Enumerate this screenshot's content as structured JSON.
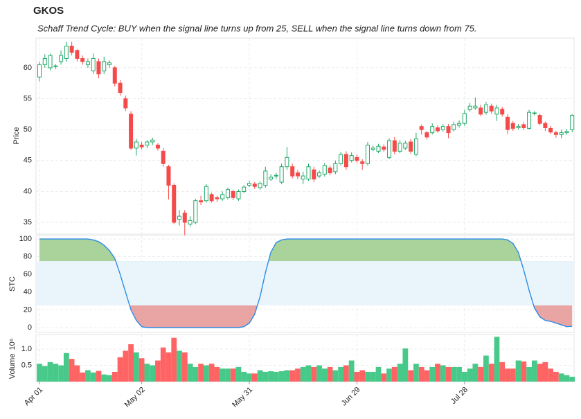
{
  "chart_data": [
    {
      "type": "candlestick",
      "title": "GKOS",
      "subtitle": "Schaff Trend Cycle: BUY when the signal line turns up from 25, SELL when the signal line turns down from 75.",
      "y_label": "Price",
      "categories": [
        "Apr 01",
        null,
        null,
        null,
        null,
        null,
        null,
        null,
        null,
        null,
        null,
        null,
        null,
        null,
        null,
        null,
        null,
        null,
        null,
        "May 02",
        null,
        null,
        null,
        null,
        null,
        null,
        null,
        null,
        null,
        null,
        null,
        null,
        null,
        null,
        null,
        null,
        null,
        null,
        null,
        "May 31",
        null,
        null,
        null,
        null,
        null,
        null,
        null,
        null,
        null,
        null,
        null,
        null,
        null,
        null,
        null,
        null,
        null,
        null,
        null,
        "Jun 29",
        null,
        null,
        null,
        null,
        null,
        null,
        null,
        null,
        null,
        null,
        null,
        null,
        null,
        null,
        null,
        null,
        null,
        null,
        null,
        "Jul 28",
        null,
        null,
        null,
        null,
        null,
        null,
        null,
        null,
        null,
        null,
        null,
        null,
        null,
        null,
        null,
        null,
        null,
        null,
        null,
        null
      ],
      "open": [
        58.5,
        60.5,
        60,
        60.2,
        61,
        61.5,
        63.5,
        62.8,
        61.5,
        60.5,
        59.5,
        61,
        59.5,
        60.5,
        60,
        57.5,
        55,
        52.5,
        47,
        47.5,
        47.5,
        48,
        47.5,
        46.5,
        44,
        41,
        35.5,
        36.5,
        34.7,
        35,
        38.5,
        38.5,
        39.5,
        39,
        38.8,
        39,
        40,
        38.8,
        40,
        41,
        41.2,
        40.6,
        41,
        42,
        42.5,
        41.5,
        44,
        44,
        43,
        42,
        42,
        43.5,
        42.5,
        42.8,
        43.8,
        43.2,
        44.5,
        46,
        45,
        45.5,
        44.8,
        44.5,
        46.8,
        46.5,
        47.2,
        45.5,
        48.2,
        46.5,
        47,
        48,
        46,
        50.5,
        49.5,
        49.5,
        50.3,
        50,
        50.5,
        50,
        50.7,
        51,
        53.2,
        53.5,
        53.5,
        52.8,
        53.8,
        52.5,
        53.3,
        52,
        51,
        50.3,
        50.8,
        50.2,
        52.6,
        52.3,
        51,
        50.2,
        49.5,
        49.2,
        49.5,
        50
      ],
      "high": [
        61,
        62.2,
        62.3,
        60.6,
        62.8,
        64.2,
        64.2,
        63,
        62,
        61.5,
        62.3,
        61.5,
        61.8,
        61.2,
        60.3,
        58,
        55.5,
        53,
        48.5,
        48,
        48.3,
        48.7,
        47.8,
        47,
        44.3,
        41.3,
        37,
        37,
        36,
        38.8,
        39.3,
        41.2,
        39.8,
        39.3,
        40,
        40.6,
        40.3,
        40.3,
        41,
        41.7,
        41.5,
        41.6,
        44,
        42.8,
        43,
        44.5,
        47.2,
        44.5,
        43.5,
        43.2,
        44.5,
        44,
        43.4,
        44.6,
        44.2,
        45,
        46.4,
        46.5,
        46.3,
        46,
        45.2,
        48,
        47.4,
        47.7,
        47.6,
        48.6,
        48.8,
        48.3,
        48.2,
        48.5,
        49.5,
        50.8,
        49.8,
        51,
        50.7,
        50.9,
        50.9,
        51.3,
        51.5,
        53.2,
        54.3,
        55.2,
        54,
        54.5,
        54.2,
        54,
        53.7,
        52.5,
        51.4,
        50.9,
        51.2,
        53.2,
        53,
        52.6,
        51.3,
        50.6,
        49.8,
        50,
        50.1,
        52.5
      ],
      "low": [
        57.8,
        60,
        59.6,
        59.8,
        60.5,
        61,
        62,
        61,
        60.5,
        60,
        59,
        58.3,
        59,
        60,
        57,
        55.5,
        53,
        46.7,
        45.8,
        46.8,
        47,
        47.5,
        46.6,
        44,
        38.7,
        34.7,
        34.5,
        32.8,
        34.3,
        34.7,
        37.8,
        38.2,
        38.2,
        38.3,
        38.5,
        38.7,
        38.6,
        38.5,
        39.7,
        40.7,
        40.4,
        40.3,
        40.6,
        41.7,
        42,
        41.2,
        43.5,
        42.1,
        42,
        41.2,
        41.7,
        41.5,
        42.2,
        42.4,
        42.6,
        42.8,
        44.2,
        43.5,
        44.7,
        44.6,
        43.5,
        44.2,
        46.5,
        46.2,
        46.4,
        45.2,
        46,
        46.2,
        46.7,
        46.1,
        45.7,
        49.2,
        48.4,
        49.2,
        49.5,
        49.7,
        48.6,
        49.7,
        50.3,
        50.6,
        52.9,
        53.2,
        52.2,
        52.4,
        52.6,
        51.4,
        52.1,
        49.3,
        49.8,
        50,
        49.9,
        50,
        52.3,
        50.7,
        49.8,
        49.3,
        48.7,
        48.6,
        49.2,
        49.6
      ],
      "close": [
        60.5,
        61.5,
        62,
        60.3,
        62,
        63.5,
        62.5,
        61.5,
        61,
        61,
        61.5,
        59,
        61,
        60.8,
        57.5,
        56,
        53.5,
        47,
        48,
        47.2,
        48,
        48.3,
        47,
        44.5,
        41,
        35,
        36,
        35,
        35.3,
        38.5,
        38.3,
        40.8,
        38.5,
        38.8,
        39.5,
        40.3,
        39,
        40,
        40.7,
        41.3,
        40.8,
        41.3,
        43.3,
        42.3,
        42.6,
        44,
        45.5,
        42.5,
        42.5,
        42.5,
        44,
        42,
        43,
        44.2,
        43,
        44.5,
        46,
        44,
        45.8,
        45,
        44.5,
        47.5,
        47,
        47.3,
        46.8,
        48.2,
        46.5,
        47.8,
        47.8,
        46.5,
        48.5,
        50,
        48.8,
        50.5,
        49.8,
        50.5,
        49.5,
        50.8,
        51,
        52.6,
        53.8,
        53.8,
        52.5,
        54,
        53,
        53.5,
        52.5,
        50,
        50.2,
        50.5,
        50.3,
        52.8,
        52.7,
        51,
        50.3,
        49.6,
        49.2,
        49.5,
        49.7,
        52.3
      ],
      "ylim": [
        33.1,
        64.8
      ],
      "yticks": [
        35,
        40,
        45,
        50,
        55,
        60
      ],
      "up_color": "#1fa866",
      "down_color": "#f64a4a",
      "grid": true
    },
    {
      "type": "line",
      "y_label": "STC",
      "values": [
        100,
        100,
        100,
        100,
        100,
        100,
        100,
        100,
        100,
        100,
        99,
        97,
        93,
        87,
        78,
        60,
        40,
        20,
        8,
        1,
        0,
        0,
        0,
        0,
        0,
        0,
        0,
        0,
        0,
        0,
        0,
        0,
        0,
        0,
        0,
        0,
        0,
        0,
        1,
        5,
        15,
        35,
        62,
        85,
        96,
        99,
        100,
        100,
        100,
        100,
        100,
        100,
        100,
        100,
        100,
        100,
        100,
        100,
        100,
        100,
        100,
        100,
        100,
        100,
        100,
        100,
        100,
        100,
        100,
        100,
        100,
        100,
        100,
        100,
        100,
        100,
        100,
        100,
        100,
        100,
        100,
        100,
        100,
        100,
        100,
        100,
        100,
        99,
        95,
        85,
        65,
        42,
        22,
        12,
        8,
        7,
        5,
        3,
        1,
        1.5
      ],
      "color": "#2b8ce6",
      "upper_level": 75,
      "lower_level": 25,
      "upper_fill": "#a9d39b",
      "lower_fill": "#e38d8d",
      "band_color": "#eaf5fb",
      "ylim": [
        -5.5,
        104
      ],
      "yticks": [
        0,
        20,
        40,
        60,
        80,
        100
      ],
      "grid": true
    },
    {
      "type": "bar",
      "y_label": "Volume",
      "y_scale_label": "10⁶",
      "values": [
        0.55,
        0.48,
        0.6,
        0.55,
        0.5,
        0.88,
        0.7,
        0.5,
        0.28,
        0.35,
        0.28,
        0.33,
        0.22,
        0.2,
        0.3,
        0.75,
        0.95,
        1.15,
        0.9,
        0.72,
        0.55,
        0.5,
        0.65,
        1.05,
        0.9,
        1.35,
        0.95,
        0.9,
        0.55,
        0.45,
        0.55,
        0.5,
        0.55,
        0.45,
        0.4,
        0.4,
        0.4,
        0.45,
        0.3,
        0.25,
        0.25,
        0.35,
        0.3,
        0.32,
        0.3,
        0.32,
        0.35,
        0.35,
        0.4,
        0.45,
        0.5,
        0.45,
        0.5,
        0.4,
        0.45,
        0.35,
        0.45,
        0.5,
        0.65,
        0.3,
        0.35,
        0.3,
        0.3,
        0.45,
        0.25,
        0.4,
        0.45,
        0.55,
        1.02,
        0.35,
        0.55,
        0.45,
        0.35,
        0.45,
        0.55,
        0.5,
        0.45,
        0.45,
        0.45,
        0.3,
        0.4,
        0.55,
        0.45,
        0.8,
        0.55,
        1.38,
        0.6,
        0.4,
        0.4,
        0.65,
        0.62,
        0.45,
        0.65,
        0.55,
        0.6,
        0.4,
        0.3,
        0.25,
        0.2,
        0.15
      ],
      "up_color": "#47c98a",
      "down_color": "#ff6464",
      "ylim": [
        0,
        1.45
      ],
      "yticks": [
        0.5,
        {
          "value": 1,
          "label": "1.0"
        }
      ],
      "grid": true
    }
  ]
}
